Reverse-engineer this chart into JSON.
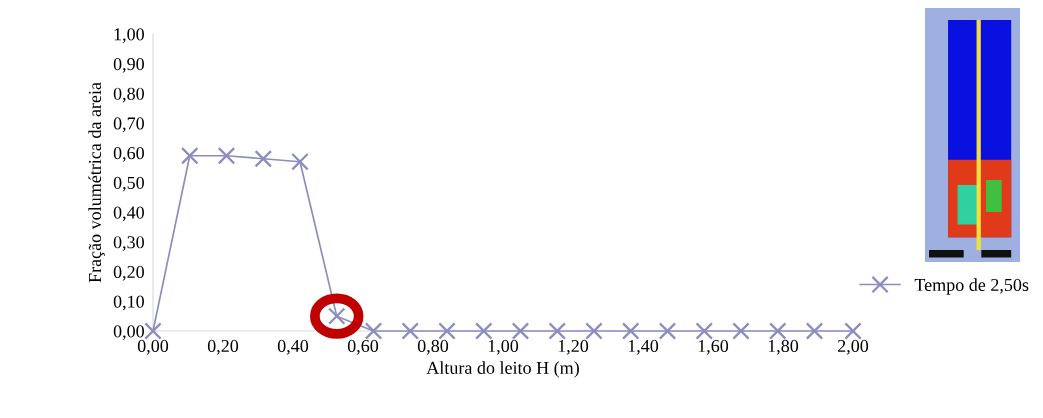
{
  "chart_data": {
    "type": "line",
    "xlabel": "Altura do leito H (m)",
    "ylabel": "Fração volumétrica da areia",
    "x": [
      0,
      0.105,
      0.21,
      0.315,
      0.42,
      0.525,
      0.63,
      0.735,
      0.84,
      0.945,
      1.05,
      1.155,
      1.26,
      1.365,
      1.47,
      1.575,
      1.68,
      1.785,
      1.89,
      2.0
    ],
    "series": [
      {
        "name": "Tempo de 2,50s",
        "color": "#8c8cc0",
        "values": [
          0,
          0.59,
          0.59,
          0.58,
          0.57,
          0.05,
          0,
          0,
          0,
          0,
          0,
          0,
          0,
          0,
          0,
          0,
          0,
          0,
          0,
          0
        ]
      }
    ],
    "xlim": [
      0,
      2
    ],
    "ylim": [
      0,
      1
    ],
    "xticks": [
      {
        "value": 0,
        "label": "0,00"
      },
      {
        "value": 0.2,
        "label": "0,20"
      },
      {
        "value": 0.4,
        "label": "0,40"
      },
      {
        "value": 0.6,
        "label": "0,60"
      },
      {
        "value": 0.8,
        "label": "0,80"
      },
      {
        "value": 1.0,
        "label": "1,00"
      },
      {
        "value": 1.2,
        "label": "1,20"
      },
      {
        "value": 1.4,
        "label": "1,40"
      },
      {
        "value": 1.6,
        "label": "1,60"
      },
      {
        "value": 1.8,
        "label": "1,80"
      },
      {
        "value": 2.0,
        "label": "2,00"
      }
    ],
    "yticks": [
      {
        "value": 0,
        "label": "0,00"
      },
      {
        "value": 0.1,
        "label": "0,10"
      },
      {
        "value": 0.2,
        "label": "0,20"
      },
      {
        "value": 0.3,
        "label": "0,30"
      },
      {
        "value": 0.4,
        "label": "0,40"
      },
      {
        "value": 0.5,
        "label": "0,50"
      },
      {
        "value": 0.6,
        "label": "0,60"
      },
      {
        "value": 0.7,
        "label": "0,70"
      },
      {
        "value": 0.8,
        "label": "0,80"
      },
      {
        "value": 0.9,
        "label": "0,90"
      },
      {
        "value": 1.0,
        "label": "1,00"
      }
    ],
    "marker": "cross",
    "line_style": "solid",
    "legend": "right",
    "grid": false
  }
}
